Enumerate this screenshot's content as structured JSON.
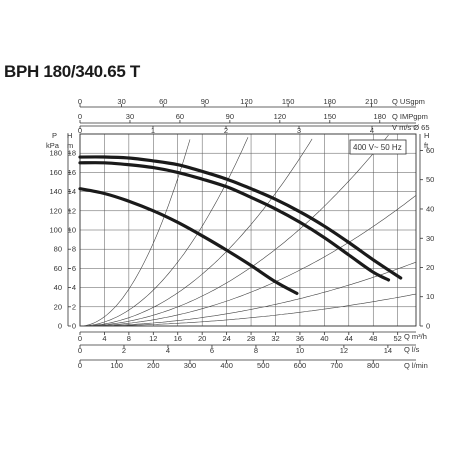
{
  "title": "BPH 180/340.65 T",
  "chart_data": {
    "type": "line",
    "title": "BPH 180/340.65 T",
    "xlim": [
      0,
      55
    ],
    "ylim": [
      0,
      20
    ],
    "grid": true,
    "x_axes": [
      {
        "label": "Q m³/h",
        "ticks": [
          "0",
          "4",
          "8",
          "12",
          "16",
          "20",
          "24",
          "28",
          "32",
          "36",
          "40",
          "44",
          "48",
          "52"
        ],
        "values": [
          0,
          4,
          8,
          12,
          16,
          20,
          24,
          28,
          32,
          36,
          40,
          44,
          48,
          52
        ]
      },
      {
        "label": "Q l/s",
        "ticks": [
          "0",
          "2",
          "4",
          "6",
          "8",
          "10",
          "12",
          "14"
        ],
        "values": [
          0,
          7.2,
          14.4,
          21.6,
          28.8,
          36,
          43.2,
          50.4
        ]
      },
      {
        "label": "Q l/min",
        "ticks": [
          "0",
          "100",
          "200",
          "300",
          "400",
          "500",
          "600",
          "700",
          "800"
        ],
        "values": [
          0,
          6,
          12,
          18,
          24,
          30,
          36,
          42,
          48
        ]
      },
      {
        "label": "Q USgpm",
        "ticks": [
          "0",
          "30",
          "60",
          "90",
          "120",
          "150",
          "180",
          "210"
        ],
        "values": [
          0,
          6.81,
          13.63,
          20.44,
          27.25,
          34.07,
          40.88,
          47.7
        ]
      },
      {
        "label": "Q IMPgpm",
        "ticks": [
          "0",
          "30",
          "60",
          "90",
          "120",
          "150",
          "180"
        ],
        "values": [
          0,
          8.18,
          16.36,
          24.53,
          32.71,
          40.89,
          49.07
        ]
      },
      {
        "label": "V m/s Ø 65",
        "ticks": [
          "0",
          "1",
          "2",
          "3",
          "4"
        ],
        "values": [
          0,
          11.95,
          23.9,
          35.85,
          47.8
        ]
      }
    ],
    "y_axes": [
      {
        "label": "P kPa",
        "ticks": [
          "0",
          "20",
          "40",
          "60",
          "80",
          "100",
          "120",
          "140",
          "160",
          "180"
        ],
        "values": [
          0,
          2,
          4,
          6,
          8,
          10,
          12,
          14,
          16,
          18
        ]
      },
      {
        "label": "H m",
        "ticks": [
          "0",
          "2",
          "4",
          "6",
          "8",
          "10",
          "12",
          "14",
          "16",
          "18"
        ],
        "values": [
          0,
          2,
          4,
          6,
          8,
          10,
          12,
          14,
          16,
          18
        ]
      },
      {
        "label": "H ft",
        "ticks": [
          "0",
          "10",
          "20",
          "30",
          "40",
          "50",
          "60"
        ],
        "values": [
          0,
          3.05,
          6.1,
          9.14,
          12.19,
          15.24,
          18.29
        ]
      }
    ],
    "annotation": "400 V~ 50 Hz",
    "series": [
      {
        "x": [
          0,
          4,
          8,
          12,
          16,
          20,
          24,
          28,
          32,
          36,
          40,
          44,
          48,
          52.5
        ],
        "values": [
          17.6,
          17.6,
          17.5,
          17.2,
          16.8,
          16.1,
          15.3,
          14.3,
          13.2,
          11.9,
          10.4,
          8.7,
          6.9,
          5.0
        ]
      },
      {
        "x": [
          0,
          4,
          8,
          12,
          16,
          20,
          24,
          28,
          32,
          36,
          40,
          44,
          48,
          50.5
        ],
        "values": [
          17.0,
          17.0,
          16.8,
          16.5,
          16.0,
          15.3,
          14.5,
          13.4,
          12.2,
          10.8,
          9.2,
          7.4,
          5.6,
          4.8
        ]
      },
      {
        "x": [
          0,
          4,
          8,
          12,
          16,
          20,
          24,
          28,
          32,
          35.5
        ],
        "values": [
          14.3,
          13.8,
          13.0,
          12.0,
          10.8,
          9.4,
          7.9,
          6.3,
          4.6,
          3.4
        ]
      }
    ],
    "system_curves": [
      {
        "k": 0.06
      },
      {
        "k": 0.026
      },
      {
        "k": 0.0135
      },
      {
        "k": 0.0078
      },
      {
        "k": 0.0045
      },
      {
        "k": 0.0022
      },
      {
        "k": 0.0011
      }
    ]
  },
  "labels": {
    "top_usgpm": "Q USgpm",
    "top_impgpm": "Q IMPgpm",
    "top_vms": "V m/s Ø 65",
    "left_p_1": "P",
    "left_p_2": "kPa",
    "left_h_1": "H",
    "left_h_2": "m",
    "right_h_1": "H",
    "right_h_2": "ft",
    "bot_m3h": "Q m³/h",
    "bot_ls": "Q l/s",
    "bot_lmin": "Q l/min"
  }
}
